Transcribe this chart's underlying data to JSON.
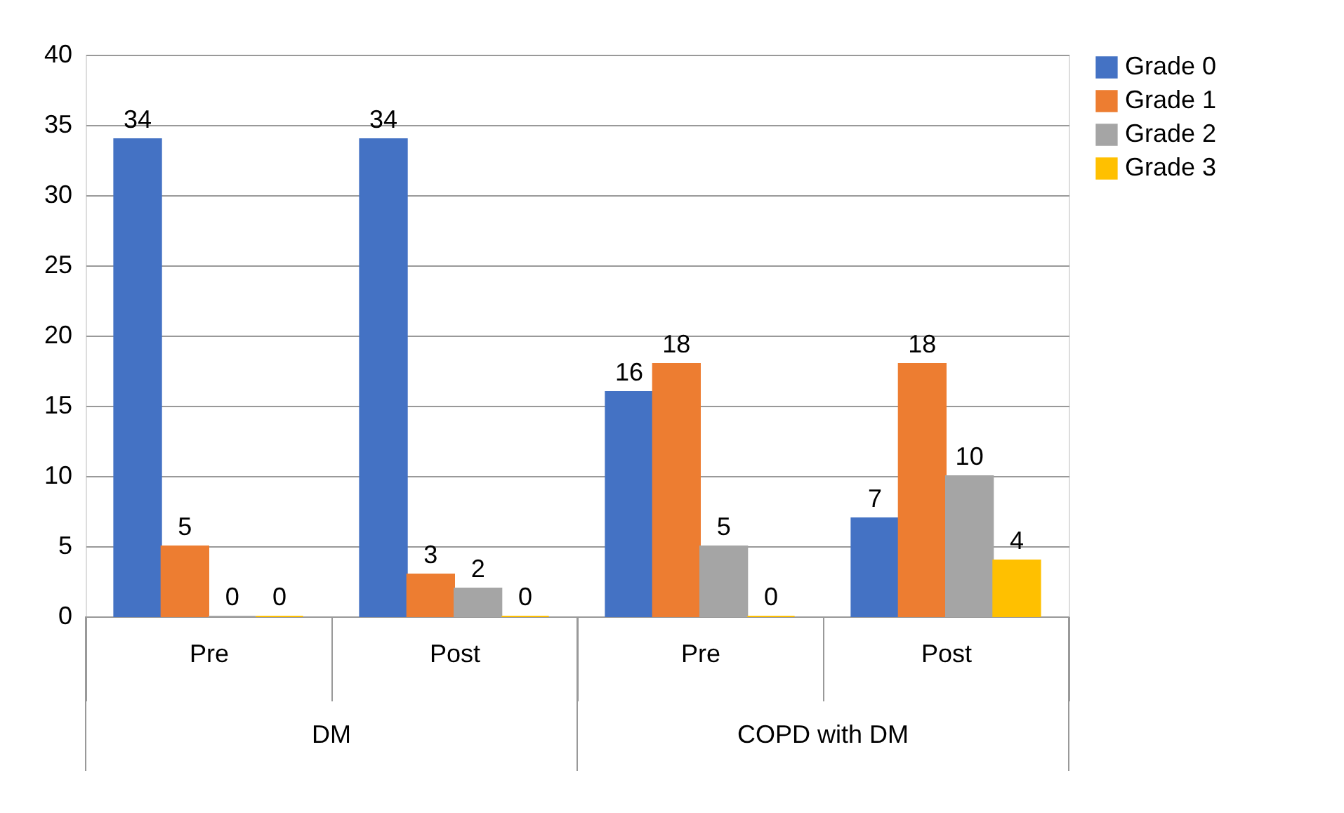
{
  "chart_data": {
    "type": "bar",
    "categories": [
      "Pre",
      "Post",
      "Pre",
      "Post"
    ],
    "series": [
      {
        "name": "Grade 0",
        "color": "#4472c4",
        "values": [
          34,
          34,
          16,
          7
        ]
      },
      {
        "name": "Grade 1",
        "color": "#ed7d31",
        "values": [
          5,
          3,
          18,
          18
        ]
      },
      {
        "name": "Grade 2",
        "color": "#a5a5a5",
        "values": [
          0,
          2,
          5,
          10
        ]
      },
      {
        "name": "Grade 3",
        "color": "#ffc000",
        "values": [
          0,
          0,
          0,
          4
        ]
      }
    ],
    "annotations": [
      "DM",
      "COPD with DM"
    ],
    "ylim": [
      0,
      40
    ],
    "yticks": [
      0,
      5,
      10,
      15,
      20,
      25,
      30,
      35,
      40
    ],
    "grid": "y",
    "legend": "right",
    "data_labels": true
  }
}
